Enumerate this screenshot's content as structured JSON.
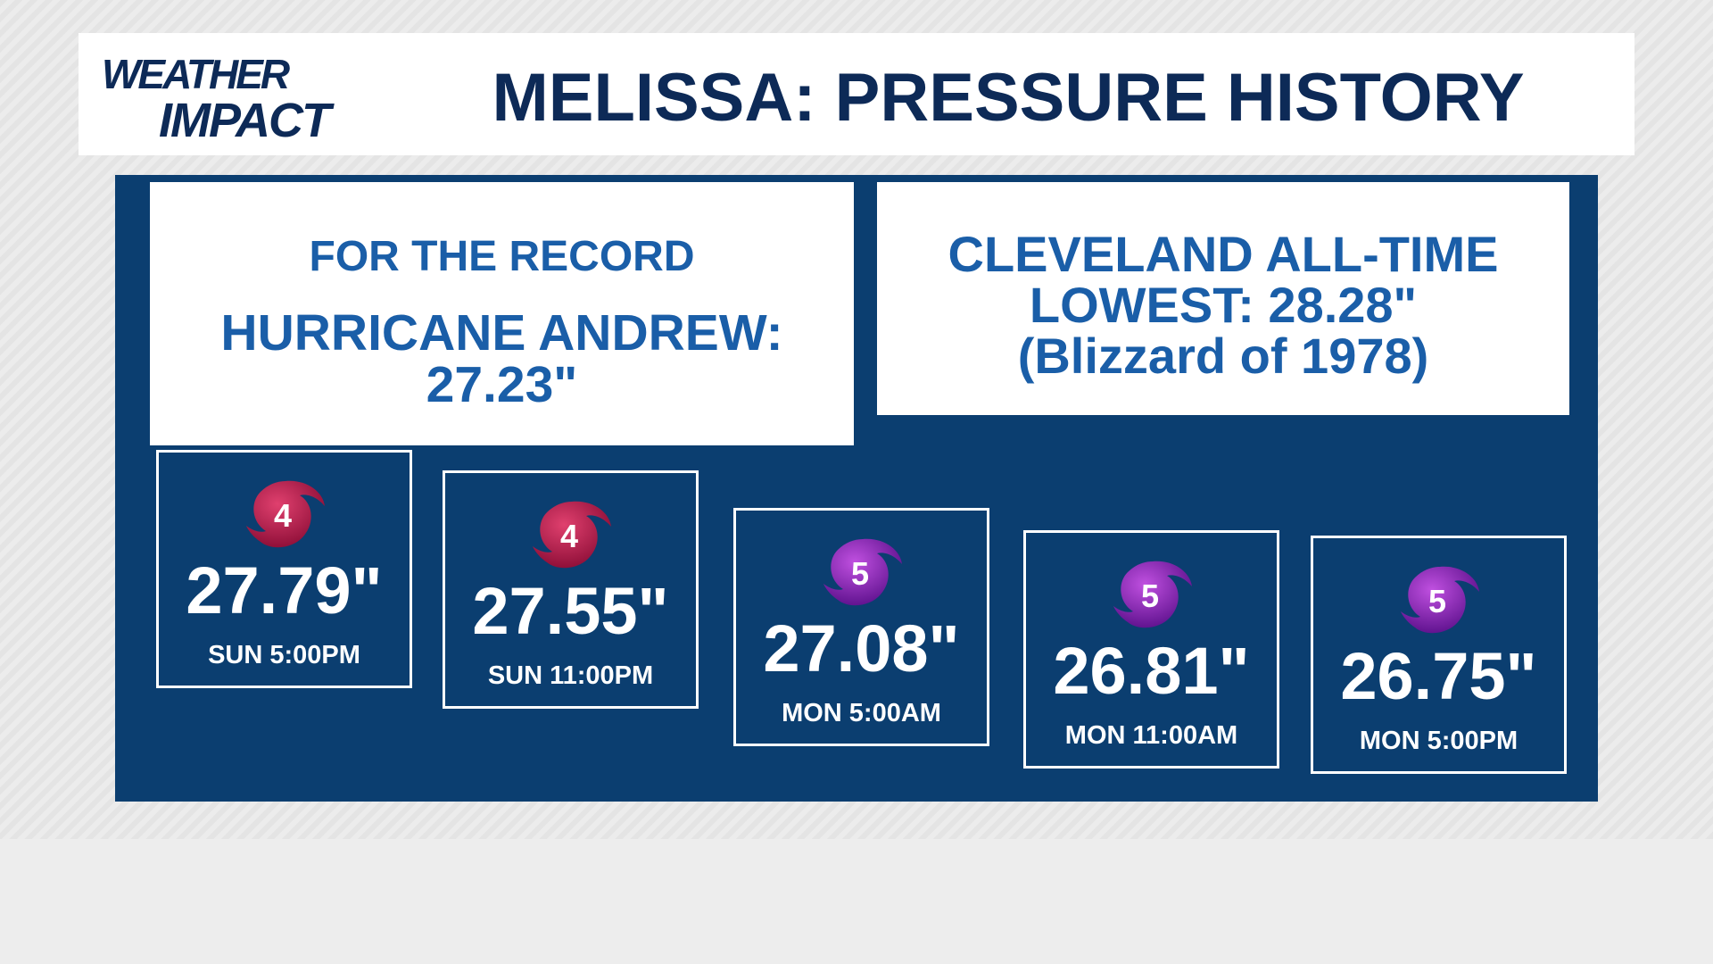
{
  "header": {
    "logo": [
      "WEATHER",
      "IMPACT"
    ],
    "title": "MELISSA: PRESSURE HISTORY"
  },
  "record_box": {
    "heading": "FOR THE RECORD",
    "lines": [
      "HURRICANE ANDREW:",
      "27.23\""
    ]
  },
  "cleveland_box": {
    "lines": [
      "CLEVELAND ALL-TIME",
      "LOWEST: 28.28\"",
      "(Blizzard of 1978)"
    ]
  },
  "cards": [
    {
      "category": "4",
      "pressure": "27.79\"",
      "time": "SUN 5:00PM"
    },
    {
      "category": "4",
      "pressure": "27.55\"",
      "time": "SUN 11:00PM"
    },
    {
      "category": "5",
      "pressure": "27.08\"",
      "time": "MON 5:00AM"
    },
    {
      "category": "5",
      "pressure": "26.81\"",
      "time": "MON 11:00AM"
    },
    {
      "category": "5",
      "pressure": "26.75\"",
      "time": "MON 5:00PM"
    }
  ]
}
